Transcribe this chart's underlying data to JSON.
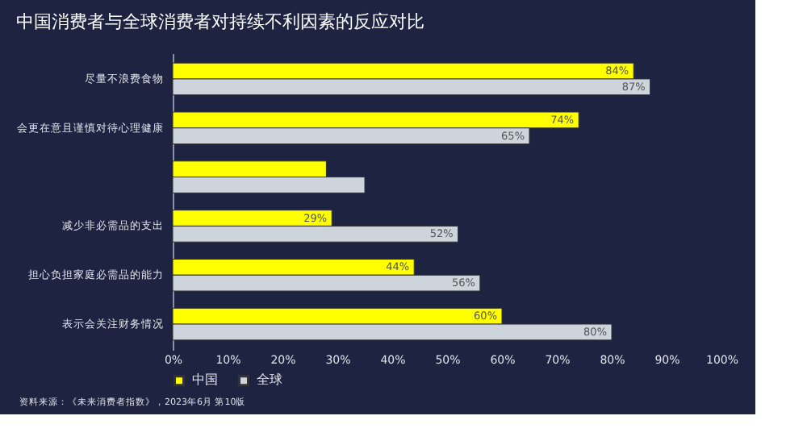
{
  "chart_data": {
    "type": "bar",
    "orientation": "horizontal",
    "title": "中国消费者与全球消费者对持续不利因素的反应对比",
    "categories": [
      "尽量不浪费食物",
      "会更在意且谨慎对待心理健康",
      null,
      "减少非必需品的支出",
      "担心负担家庭必需品的能力",
      "表示会关注财务情况"
    ],
    "series": [
      {
        "name": "中国",
        "color": "#ffff00",
        "values": [
          84,
          74,
          28,
          29,
          44,
          60
        ],
        "value_labels": [
          "84%",
          "74%",
          null,
          "29%",
          "44%",
          "60%"
        ]
      },
      {
        "name": "全球",
        "color": "#cdd4dc",
        "values": [
          87,
          65,
          35,
          52,
          56,
          80
        ],
        "value_labels": [
          "87%",
          "65%",
          null,
          "52%",
          "56%",
          "80%"
        ]
      }
    ],
    "xlim": [
      0,
      100
    ],
    "xticks": [
      {
        "value": 0,
        "label": "0%"
      },
      {
        "value": 10,
        "label": "10%"
      },
      {
        "value": 20,
        "label": "20%"
      },
      {
        "value": 30,
        "label": "30%"
      },
      {
        "value": 40,
        "label": "40%"
      },
      {
        "value": 50,
        "label": "50%"
      },
      {
        "value": 60,
        "label": "60%"
      },
      {
        "value": 70,
        "label": "70%"
      },
      {
        "value": 80,
        "label": "80%"
      },
      {
        "value": 90,
        "label": "90%"
      },
      {
        "value": 100,
        "label": "100%"
      }
    ],
    "grid": false,
    "legend": "bottom",
    "annotations": [
      "资料来源：《未来消费者指数》，2023年6月 第10版"
    ]
  }
}
